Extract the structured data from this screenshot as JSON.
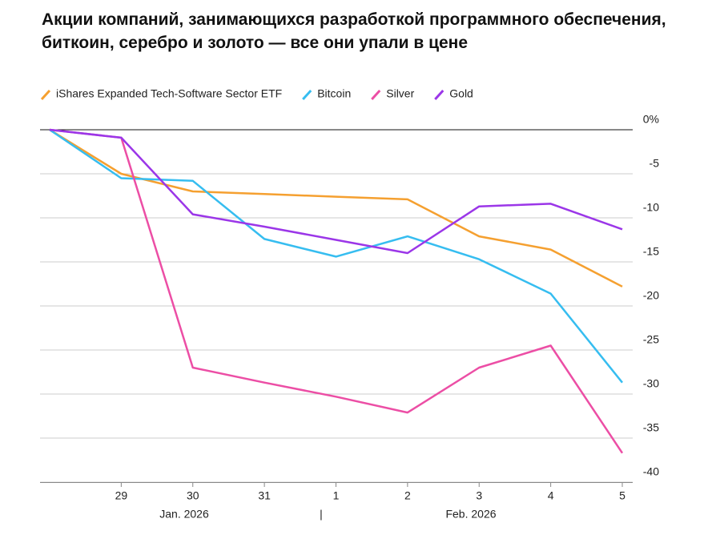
{
  "chart_data": {
    "type": "line",
    "title": "Акции компаний, занимающихся разработкой программного обеспечения, биткоин, серебро и золото — все они упали в цене",
    "x": [
      "2026-01-28",
      "2026-01-29",
      "2026-01-30",
      "2026-01-31",
      "2026-02-01",
      "2026-02-02",
      "2026-02-03",
      "2026-02-04",
      "2026-02-05"
    ],
    "series": [
      {
        "name": "iShares Expanded Tech-Software Sector ETF",
        "color": "#f5a030",
        "values": [
          0,
          -5,
          -7,
          -7.3,
          -7.6,
          -7.9,
          -12.1,
          -13.6,
          -17.8
        ]
      },
      {
        "name": "Bitcoin",
        "color": "#36bdf0",
        "values": [
          0,
          -5.5,
          -5.8,
          -12.4,
          -14.4,
          -12.1,
          -14.7,
          -18.6,
          -28.7
        ]
      },
      {
        "name": "Silver",
        "color": "#ec4ea5",
        "values": [
          0,
          -0.9,
          -27,
          -28.7,
          -30.3,
          -32.1,
          -27,
          -24.5,
          -36.7
        ]
      },
      {
        "name": "Gold",
        "color": "#9b36e8",
        "values": [
          0,
          -0.9,
          -9.6,
          -11,
          -12.5,
          -14,
          -8.7,
          -8.4,
          -11.3
        ]
      }
    ],
    "xlim": [
      "2026-01-28",
      "2026-02-05"
    ],
    "xticks": [
      {
        "value": "2026-01-29",
        "label": "29"
      },
      {
        "value": "2026-01-30",
        "label": "30"
      },
      {
        "value": "2026-01-31",
        "label": "31"
      },
      {
        "value": "2026-02-01",
        "label": "1"
      },
      {
        "value": "2026-02-02",
        "label": "2"
      },
      {
        "value": "2026-02-03",
        "label": "3"
      },
      {
        "value": "2026-02-04",
        "label": "4"
      },
      {
        "value": "2026-02-05",
        "label": "5"
      }
    ],
    "x_group_labels": [
      "Jan. 2026",
      "|",
      "Feb. 2026"
    ],
    "ylim": [
      -40,
      0
    ],
    "yticks": [
      {
        "value": 0,
        "label": "0%"
      },
      -5,
      -10,
      -15,
      -20,
      -25,
      -30,
      -35,
      -40
    ],
    "grid": true
  }
}
